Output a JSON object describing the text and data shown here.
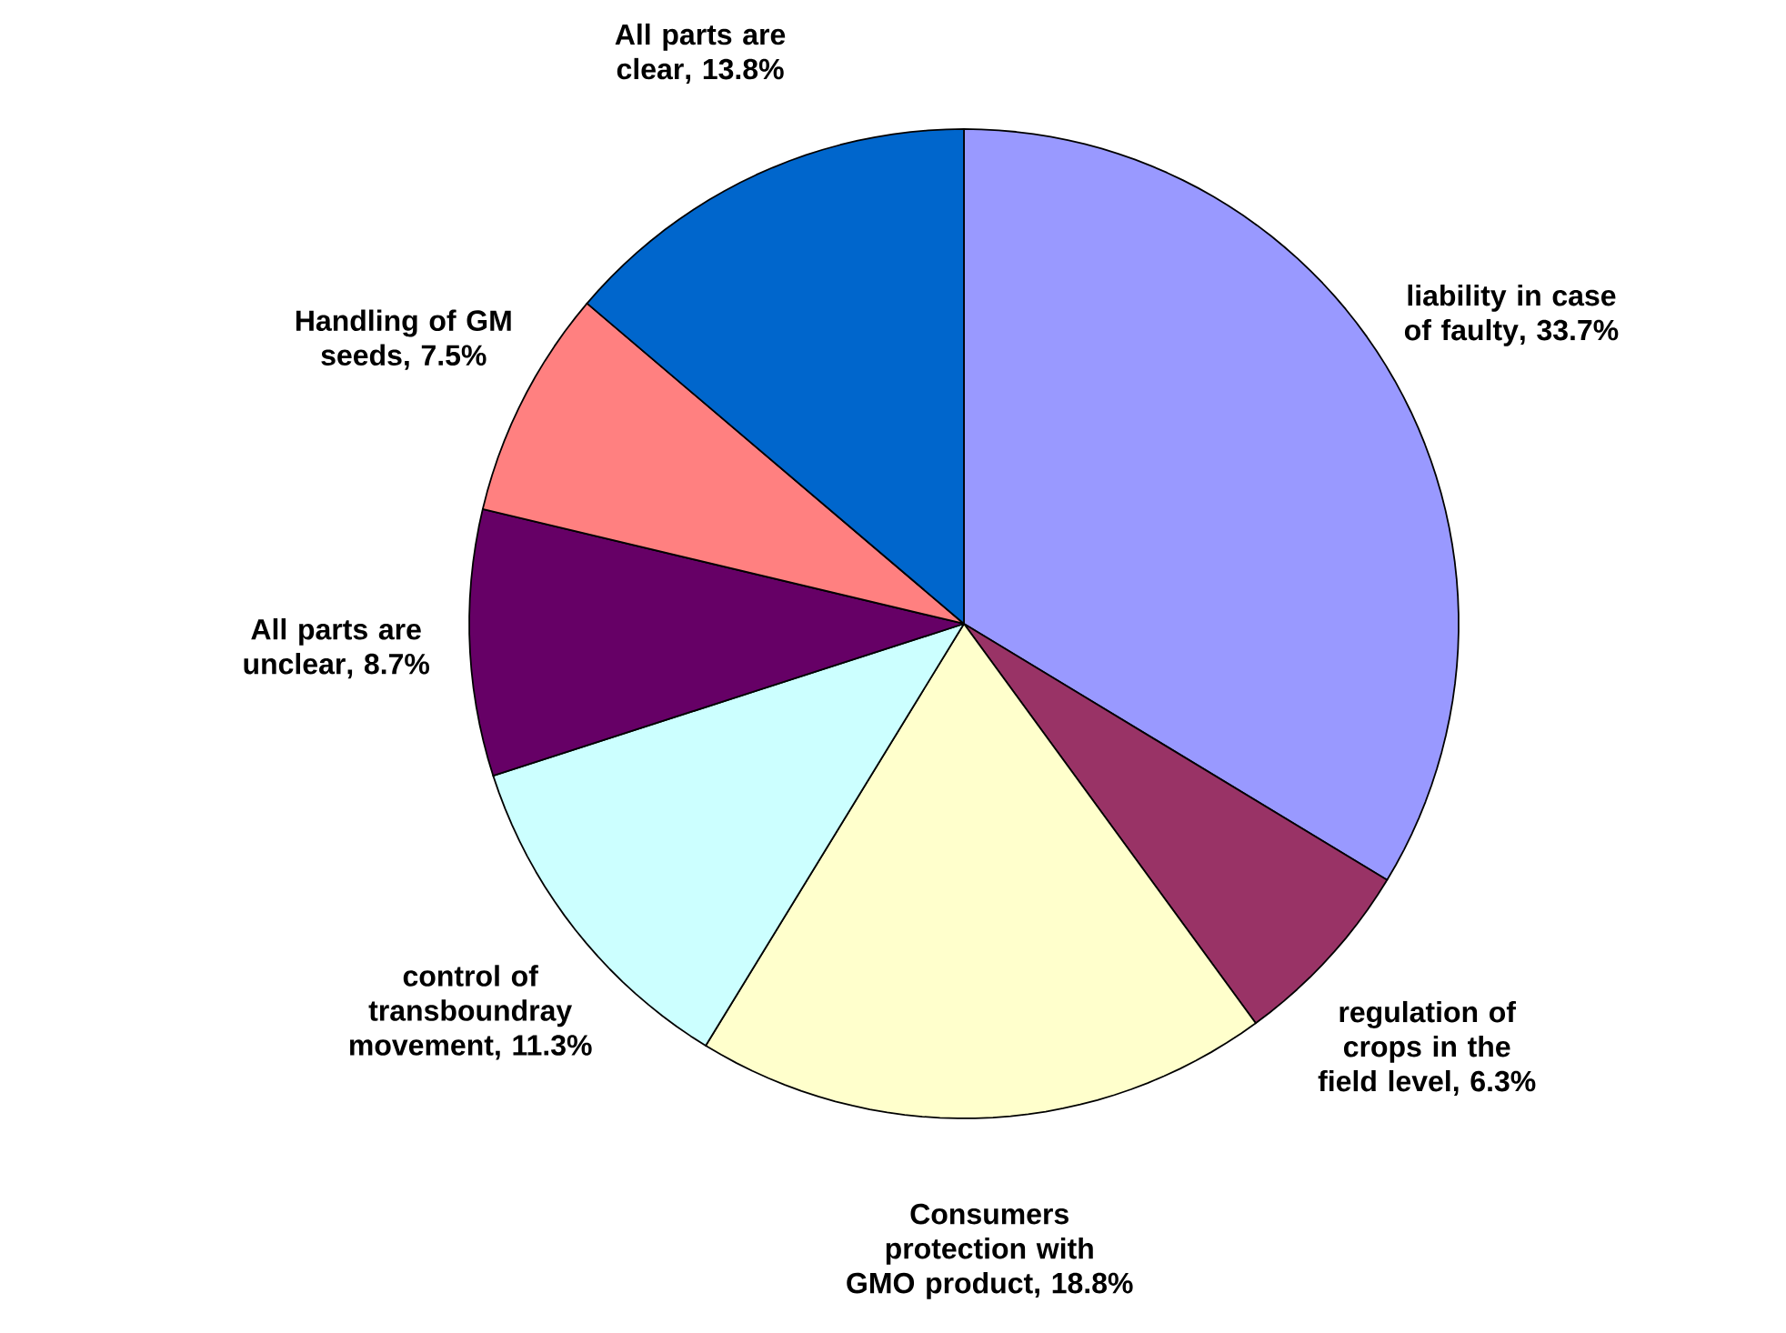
{
  "chart_data": {
    "type": "pie",
    "categories": [
      "liability in case of faulty",
      "regulation of crops in the field level",
      "Consumers protection with GMO product",
      "control of transboundray movement",
      "All parts are unclear",
      "Handling of GM seeds",
      "All parts are clear"
    ],
    "values": [
      33.7,
      6.3,
      18.8,
      11.3,
      8.7,
      7.5,
      13.8
    ],
    "value_labels": [
      ", 33.7%",
      ", 6.3%",
      ", 18.8%",
      ", 11.3%",
      ", 8.7%",
      ", 7.5%",
      ", 13.8%"
    ],
    "colors": [
      "#9999ff",
      "#993366",
      "#ffffcc",
      "#ccffff",
      "#660066",
      "#ff8080",
      "#0066cc"
    ]
  }
}
